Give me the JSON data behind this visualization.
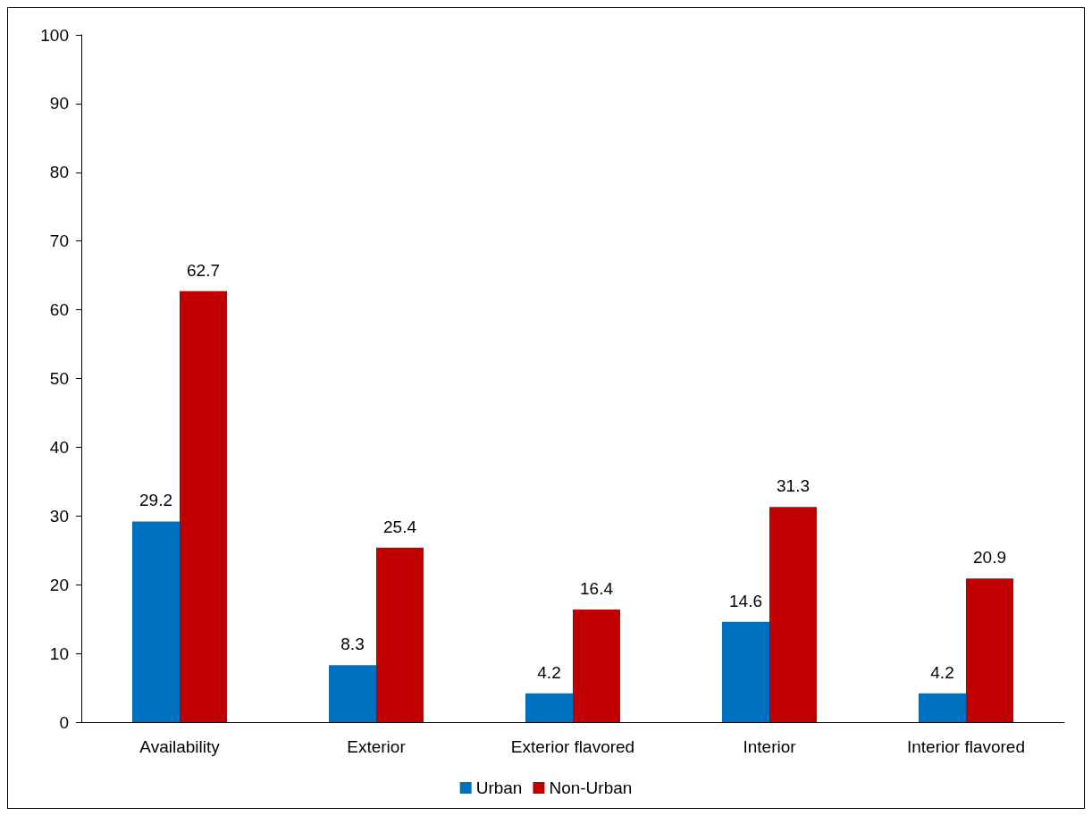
{
  "chart_data": {
    "type": "bar",
    "categories": [
      "Availability",
      "Exterior",
      "Exterior flavored",
      "Interior",
      "Interior flavored"
    ],
    "series": [
      {
        "name": "Urban",
        "color": "#0070c0",
        "values": [
          29.2,
          8.3,
          4.2,
          14.6,
          4.2
        ]
      },
      {
        "name": "Non-Urban",
        "color": "#c00000",
        "values": [
          62.7,
          25.4,
          16.4,
          31.3,
          20.9
        ]
      }
    ],
    "ylim": [
      0,
      100
    ],
    "yticks": [
      0,
      10,
      20,
      30,
      40,
      50,
      60,
      70,
      80,
      90,
      100
    ],
    "grid": false,
    "legend": "bottom",
    "data_labels": true
  }
}
